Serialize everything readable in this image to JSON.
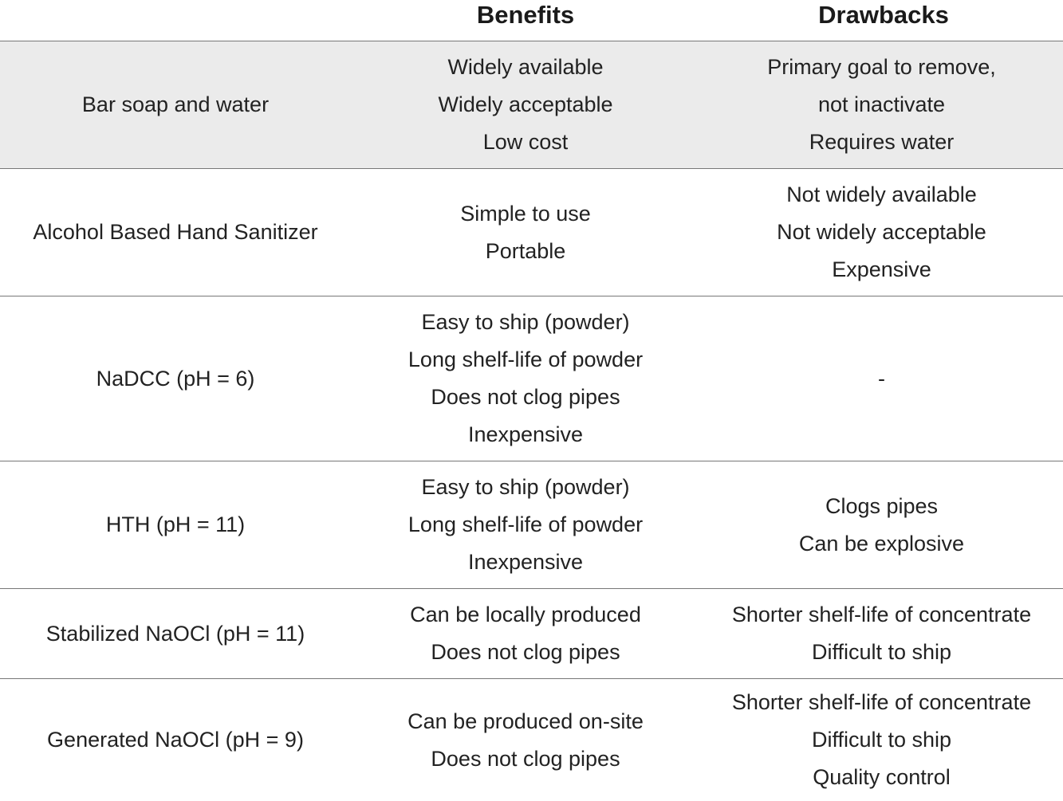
{
  "headers": {
    "col1": "",
    "col2": "Benefits",
    "col3": "Drawbacks"
  },
  "rows": [
    {
      "name": "Bar soap and water",
      "benefits": [
        "Widely available",
        "Widely acceptable",
        "Low cost"
      ],
      "drawbacks": [
        "Primary goal to remove,",
        "not inactivate",
        "Requires water"
      ]
    },
    {
      "name": "Alcohol Based Hand Sanitizer",
      "benefits": [
        "Simple to use",
        "Portable"
      ],
      "drawbacks": [
        "Not widely available",
        "Not widely acceptable",
        "Expensive"
      ]
    },
    {
      "name": "NaDCC (pH = 6)",
      "benefits": [
        "Easy to ship (powder)",
        "Long shelf-life of powder",
        "Does not clog pipes",
        "Inexpensive"
      ],
      "drawbacks": [
        "-"
      ]
    },
    {
      "name": "HTH (pH = 11)",
      "benefits": [
        "Easy to ship (powder)",
        "Long shelf-life of powder",
        "Inexpensive"
      ],
      "drawbacks": [
        "Clogs pipes",
        "Can be explosive"
      ]
    },
    {
      "name": "Stabilized NaOCl (pH = 11)",
      "benefits": [
        "Can be locally produced",
        "Does not clog pipes"
      ],
      "drawbacks": [
        "Shorter shelf-life of concentrate",
        "Difficult to ship"
      ]
    },
    {
      "name": "Generated NaOCl (pH = 9)",
      "benefits": [
        "Can be produced on-site",
        "Does not clog pipes"
      ],
      "drawbacks": [
        "Shorter shelf-life of concentrate",
        "Difficult to ship",
        "Quality control"
      ]
    }
  ]
}
